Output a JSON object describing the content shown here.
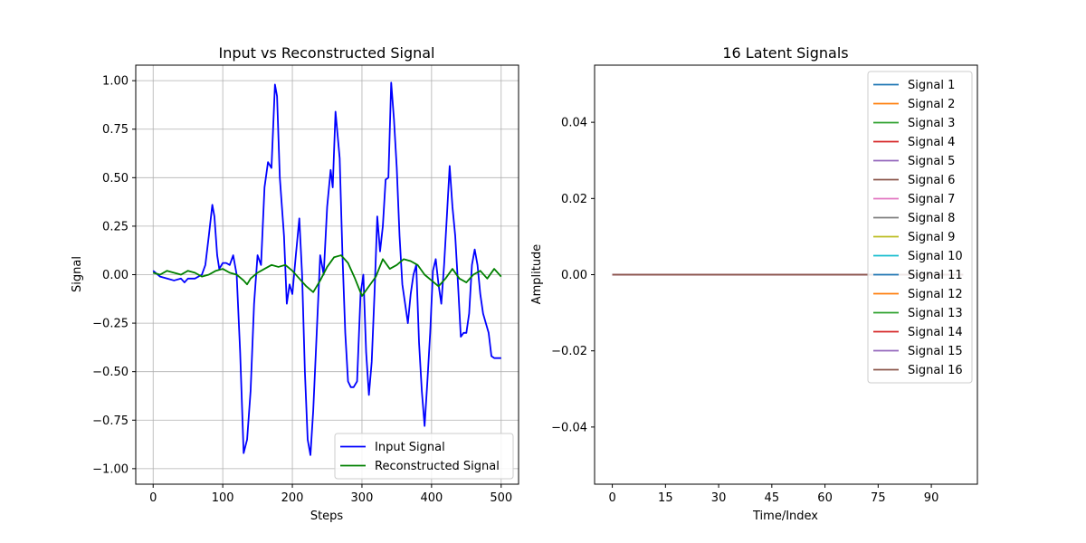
{
  "chart_data": [
    {
      "type": "line",
      "title": "Input vs Reconstructed Signal",
      "xlabel": "Steps",
      "ylabel": "Signal",
      "xlim": [
        -25,
        525
      ],
      "ylim": [
        -1.08,
        1.08
      ],
      "xticks": [
        0,
        100,
        200,
        300,
        400,
        500
      ],
      "xtick_labels": [
        "0",
        "100",
        "200",
        "300",
        "400",
        "500"
      ],
      "yticks": [
        -1.0,
        -0.75,
        -0.5,
        -0.25,
        0.0,
        0.25,
        0.5,
        0.75,
        1.0
      ],
      "ytick_labels": [
        "−1.00",
        "−0.75",
        "−0.50",
        "−0.25",
        "0.00",
        "0.25",
        "0.50",
        "0.75",
        "1.00"
      ],
      "grid": true,
      "legend_position": "bottom-right",
      "series": [
        {
          "name": "Input Signal",
          "color": "#0000ff",
          "x": [
            0,
            10,
            20,
            30,
            40,
            45,
            50,
            60,
            70,
            75,
            80,
            85,
            88,
            92,
            95,
            100,
            105,
            110,
            115,
            120,
            125,
            130,
            135,
            140,
            145,
            150,
            155,
            160,
            165,
            170,
            175,
            178,
            182,
            188,
            192,
            196,
            200,
            205,
            210,
            214,
            218,
            222,
            226,
            230,
            235,
            240,
            245,
            250,
            255,
            258,
            262,
            268,
            272,
            276,
            280,
            284,
            288,
            293,
            298,
            302,
            306,
            310,
            314,
            318,
            322,
            326,
            330,
            334,
            338,
            342,
            346,
            350,
            354,
            358,
            362,
            366,
            370,
            374,
            378,
            382,
            386,
            390,
            394,
            398,
            402,
            406,
            410,
            414,
            418,
            422,
            426,
            430,
            434,
            438,
            442,
            446,
            450,
            454,
            458,
            462,
            466,
            470,
            474,
            478,
            482,
            486,
            490,
            494,
            498,
            500
          ],
          "y": [
            0.02,
            -0.01,
            -0.02,
            -0.03,
            -0.02,
            -0.04,
            -0.02,
            -0.02,
            0.0,
            0.05,
            0.2,
            0.36,
            0.3,
            0.1,
            0.03,
            0.06,
            0.06,
            0.05,
            0.1,
            0.0,
            -0.4,
            -0.92,
            -0.85,
            -0.6,
            -0.15,
            0.1,
            0.05,
            0.45,
            0.58,
            0.55,
            0.98,
            0.92,
            0.5,
            0.2,
            -0.15,
            -0.05,
            -0.1,
            0.1,
            0.29,
            0.0,
            -0.5,
            -0.85,
            -0.93,
            -0.7,
            -0.3,
            0.1,
            0.0,
            0.35,
            0.54,
            0.45,
            0.84,
            0.6,
            0.1,
            -0.3,
            -0.55,
            -0.58,
            -0.58,
            -0.55,
            -0.1,
            0.0,
            -0.4,
            -0.62,
            -0.45,
            -0.1,
            0.3,
            0.12,
            0.25,
            0.49,
            0.5,
            0.99,
            0.8,
            0.55,
            0.2,
            -0.05,
            -0.15,
            -0.25,
            -0.1,
            0.0,
            0.05,
            -0.35,
            -0.6,
            -0.78,
            -0.55,
            -0.3,
            0.02,
            0.08,
            -0.05,
            -0.15,
            0.05,
            0.3,
            0.56,
            0.35,
            0.2,
            -0.05,
            -0.32,
            -0.3,
            -0.3,
            -0.2,
            0.05,
            0.13,
            0.05,
            -0.1,
            -0.2,
            -0.25,
            -0.3,
            -0.42,
            -0.43,
            -0.43,
            -0.43,
            -0.43
          ]
        },
        {
          "name": "Reconstructed Signal",
          "color": "#008000",
          "x": [
            0,
            10,
            20,
            30,
            40,
            50,
            60,
            70,
            80,
            90,
            100,
            110,
            120,
            130,
            135,
            140,
            150,
            160,
            170,
            180,
            190,
            200,
            210,
            220,
            230,
            240,
            250,
            260,
            270,
            280,
            290,
            300,
            310,
            320,
            330,
            340,
            350,
            360,
            370,
            380,
            390,
            400,
            410,
            420,
            430,
            440,
            450,
            460,
            470,
            480,
            490,
            500
          ],
          "y": [
            0.01,
            0.0,
            0.02,
            0.01,
            0.0,
            0.02,
            0.01,
            -0.01,
            0.0,
            0.02,
            0.03,
            0.01,
            0.0,
            -0.03,
            -0.05,
            -0.02,
            0.01,
            0.03,
            0.05,
            0.04,
            0.05,
            0.02,
            -0.02,
            -0.06,
            -0.09,
            -0.03,
            0.04,
            0.09,
            0.1,
            0.06,
            -0.02,
            -0.11,
            -0.06,
            -0.01,
            0.08,
            0.03,
            0.05,
            0.08,
            0.07,
            0.05,
            0.0,
            -0.03,
            -0.06,
            -0.02,
            0.03,
            -0.02,
            -0.04,
            0.0,
            0.02,
            -0.02,
            0.03,
            -0.01
          ]
        }
      ]
    },
    {
      "type": "line",
      "title": "16 Latent Signals",
      "xlabel": "Time/Index",
      "ylabel": "Amplitude",
      "xlim": [
        -5,
        103
      ],
      "ylim": [
        -0.055,
        0.055
      ],
      "xticks": [
        0,
        15,
        30,
        45,
        60,
        75,
        90
      ],
      "xtick_labels": [
        "0",
        "15",
        "30",
        "45",
        "60",
        "75",
        "90"
      ],
      "yticks": [
        -0.04,
        -0.02,
        0.0,
        0.02,
        0.04
      ],
      "ytick_labels": [
        "−0.04",
        "−0.02",
        "0.00",
        "0.02",
        "0.04"
      ],
      "grid": false,
      "legend_position": "top-right",
      "x_range": [
        0,
        99
      ],
      "series": [
        {
          "name": "Signal 1",
          "color": "#1f77b4",
          "value": 0.0
        },
        {
          "name": "Signal 2",
          "color": "#ff7f0e",
          "value": 0.0
        },
        {
          "name": "Signal 3",
          "color": "#2ca02c",
          "value": 0.0
        },
        {
          "name": "Signal 4",
          "color": "#d62728",
          "value": 0.0
        },
        {
          "name": "Signal 5",
          "color": "#9467bd",
          "value": 0.0
        },
        {
          "name": "Signal 6",
          "color": "#8c564b",
          "value": 0.0
        },
        {
          "name": "Signal 7",
          "color": "#e377c2",
          "value": 0.0
        },
        {
          "name": "Signal 8",
          "color": "#7f7f7f",
          "value": 0.0
        },
        {
          "name": "Signal 9",
          "color": "#bcbd22",
          "value": 0.0
        },
        {
          "name": "Signal 10",
          "color": "#17becf",
          "value": 0.0
        },
        {
          "name": "Signal 11",
          "color": "#1f77b4",
          "value": 0.0
        },
        {
          "name": "Signal 12",
          "color": "#ff7f0e",
          "value": 0.0
        },
        {
          "name": "Signal 13",
          "color": "#2ca02c",
          "value": 0.0
        },
        {
          "name": "Signal 14",
          "color": "#d62728",
          "value": 0.0
        },
        {
          "name": "Signal 15",
          "color": "#9467bd",
          "value": 0.0
        },
        {
          "name": "Signal 16",
          "color": "#8c564b",
          "value": 0.0
        }
      ]
    }
  ]
}
